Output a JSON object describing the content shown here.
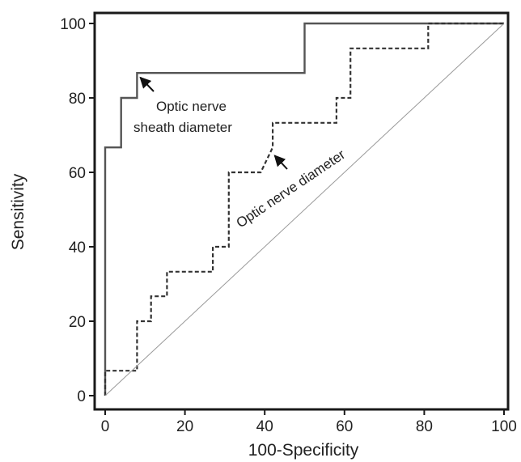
{
  "chart_data": {
    "type": "line",
    "title": "",
    "xlabel": "100-Specificity",
    "ylabel": "Sensitivity",
    "xlim": [
      0,
      100
    ],
    "ylim": [
      0,
      100
    ],
    "xticks": [
      "0",
      "20",
      "40",
      "60",
      "80",
      "100"
    ],
    "yticks": [
      "0",
      "20",
      "40",
      "60",
      "80",
      "100"
    ],
    "grid": false,
    "legend": "none",
    "series": [
      {
        "line_style": "solid",
        "color": "#555555",
        "x": [
          0,
          0,
          4,
          4,
          8,
          8,
          50,
          50,
          100
        ],
        "y": [
          0,
          66.7,
          66.7,
          80,
          80,
          86.7,
          86.7,
          100,
          100
        ]
      },
      {
        "line_style": "dashed",
        "color": "#333333",
        "x": [
          0,
          0,
          8,
          8,
          11.5,
          11.5,
          15.5,
          15.5,
          27,
          27,
          31,
          31,
          39,
          42,
          42,
          58,
          58,
          61.5,
          61.5,
          81,
          81,
          100
        ],
        "y": [
          0,
          6.7,
          6.7,
          20,
          20,
          26.7,
          26.7,
          33.3,
          33.3,
          40,
          40,
          60,
          60,
          66.7,
          73.3,
          73.3,
          80,
          80,
          93.3,
          93.3,
          100,
          100
        ]
      },
      {
        "line_style": "reference",
        "color": "#999999",
        "x": [
          0,
          100
        ],
        "y": [
          0,
          100
        ]
      }
    ],
    "annotations": [
      {
        "lines": [
          "Optic nerve",
          "sheath diameter"
        ],
        "arrow_to": [
          8.8,
          85.5
        ]
      },
      {
        "lines": [
          "Optic nerve diameter"
        ],
        "arrow_to": [
          42.5,
          64.5
        ]
      }
    ]
  }
}
